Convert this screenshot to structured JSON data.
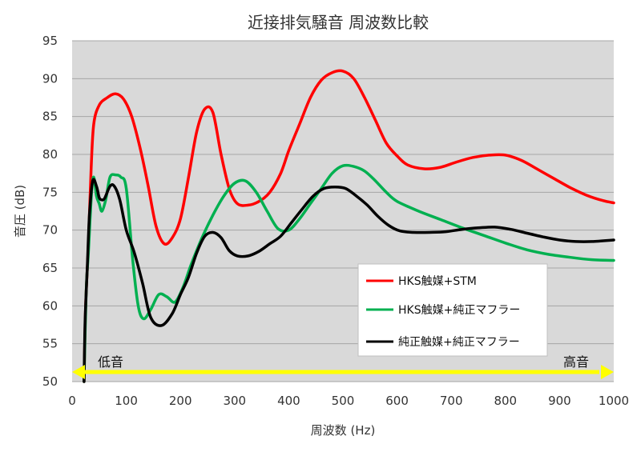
{
  "chart_data": {
    "type": "line",
    "title": "近接排気騒音 周波数比較",
    "xlabel": "周波数 (Hz)",
    "ylabel": "音圧 (dB)",
    "xlim": [
      0,
      1000
    ],
    "ylim": [
      50,
      95
    ],
    "xticks": [
      "0",
      "100",
      "200",
      "300",
      "400",
      "500",
      "600",
      "700",
      "800",
      "900",
      "1000"
    ],
    "yticks": [
      "50",
      "55",
      "60",
      "65",
      "70",
      "75",
      "80",
      "85",
      "90",
      "95"
    ],
    "grid": "horizontal",
    "background_color": "#d9d9d9",
    "legend_position": "bottom-right-inside",
    "annotations": [
      {
        "text": "低音",
        "position": "left"
      },
      {
        "text": "高音",
        "position": "right"
      }
    ],
    "arrow_color": "#ffff00",
    "series": [
      {
        "name": "HKS触媒+STM",
        "color": "#ff0000",
        "points": [
          [
            22,
            50
          ],
          [
            25,
            60
          ],
          [
            30,
            68
          ],
          [
            35,
            78
          ],
          [
            40,
            84
          ],
          [
            50,
            86.5
          ],
          [
            65,
            87.5
          ],
          [
            80,
            88
          ],
          [
            95,
            87.3
          ],
          [
            110,
            85
          ],
          [
            125,
            81
          ],
          [
            140,
            76
          ],
          [
            155,
            70.5
          ],
          [
            170,
            68.2
          ],
          [
            185,
            69
          ],
          [
            200,
            71.5
          ],
          [
            215,
            77
          ],
          [
            230,
            83
          ],
          [
            245,
            86
          ],
          [
            260,
            85.5
          ],
          [
            275,
            80
          ],
          [
            290,
            75.5
          ],
          [
            305,
            73.5
          ],
          [
            325,
            73.3
          ],
          [
            345,
            73.8
          ],
          [
            365,
            75
          ],
          [
            385,
            77.5
          ],
          [
            400,
            80.5
          ],
          [
            420,
            84
          ],
          [
            440,
            87.5
          ],
          [
            460,
            89.8
          ],
          [
            480,
            90.8
          ],
          [
            500,
            91
          ],
          [
            520,
            90
          ],
          [
            540,
            87.5
          ],
          [
            560,
            84.5
          ],
          [
            580,
            81.5
          ],
          [
            600,
            79.8
          ],
          [
            620,
            78.6
          ],
          [
            650,
            78.1
          ],
          [
            680,
            78.3
          ],
          [
            710,
            79
          ],
          [
            740,
            79.6
          ],
          [
            770,
            79.9
          ],
          [
            800,
            79.9
          ],
          [
            830,
            79.2
          ],
          [
            860,
            78
          ],
          [
            890,
            76.8
          ],
          [
            920,
            75.6
          ],
          [
            950,
            74.6
          ],
          [
            980,
            73.9
          ],
          [
            1000,
            73.6
          ]
        ]
      },
      {
        "name": "HKS触媒+純正マフラー",
        "color": "#00b050",
        "points": [
          [
            22,
            50
          ],
          [
            26,
            62
          ],
          [
            30,
            67
          ],
          [
            36,
            75
          ],
          [
            40,
            77
          ],
          [
            45,
            74.5
          ],
          [
            50,
            73.5
          ],
          [
            55,
            72.5
          ],
          [
            62,
            74
          ],
          [
            70,
            77
          ],
          [
            80,
            77.3
          ],
          [
            90,
            77
          ],
          [
            100,
            75.5
          ],
          [
            112,
            66
          ],
          [
            122,
            60
          ],
          [
            132,
            58.3
          ],
          [
            145,
            59.5
          ],
          [
            160,
            61.5
          ],
          [
            175,
            61.2
          ],
          [
            190,
            60.5
          ],
          [
            205,
            62.5
          ],
          [
            220,
            65.5
          ],
          [
            240,
            69
          ],
          [
            260,
            72
          ],
          [
            280,
            74.5
          ],
          [
            300,
            76.2
          ],
          [
            320,
            76.5
          ],
          [
            340,
            75
          ],
          [
            360,
            72.5
          ],
          [
            380,
            70.2
          ],
          [
            400,
            70
          ],
          [
            420,
            71.5
          ],
          [
            440,
            73.5
          ],
          [
            460,
            75.5
          ],
          [
            480,
            77.5
          ],
          [
            500,
            78.5
          ],
          [
            520,
            78.4
          ],
          [
            540,
            77.8
          ],
          [
            560,
            76.5
          ],
          [
            580,
            75
          ],
          [
            600,
            73.8
          ],
          [
            640,
            72.5
          ],
          [
            680,
            71.4
          ],
          [
            720,
            70.3
          ],
          [
            760,
            69.3
          ],
          [
            800,
            68.3
          ],
          [
            840,
            67.4
          ],
          [
            880,
            66.8
          ],
          [
            920,
            66.4
          ],
          [
            960,
            66.1
          ],
          [
            1000,
            66
          ]
        ]
      },
      {
        "name": "純正触媒+純正マフラー",
        "color": "#000000",
        "points": [
          [
            22,
            50
          ],
          [
            24,
            58
          ],
          [
            28,
            65
          ],
          [
            32,
            72
          ],
          [
            38,
            76.5
          ],
          [
            45,
            75.8
          ],
          [
            50,
            74.3
          ],
          [
            55,
            74
          ],
          [
            60,
            74.2
          ],
          [
            70,
            75.8
          ],
          [
            78,
            75.8
          ],
          [
            88,
            74
          ],
          [
            100,
            70
          ],
          [
            115,
            67
          ],
          [
            130,
            63
          ],
          [
            145,
            58.5
          ],
          [
            165,
            57.4
          ],
          [
            185,
            59
          ],
          [
            200,
            61.5
          ],
          [
            215,
            63.8
          ],
          [
            230,
            67
          ],
          [
            245,
            69.2
          ],
          [
            260,
            69.7
          ],
          [
            275,
            69
          ],
          [
            290,
            67.3
          ],
          [
            305,
            66.6
          ],
          [
            325,
            66.6
          ],
          [
            345,
            67.2
          ],
          [
            365,
            68.2
          ],
          [
            385,
            69.2
          ],
          [
            405,
            71
          ],
          [
            425,
            72.8
          ],
          [
            445,
            74.5
          ],
          [
            465,
            75.5
          ],
          [
            485,
            75.7
          ],
          [
            505,
            75.5
          ],
          [
            525,
            74.5
          ],
          [
            545,
            73.3
          ],
          [
            565,
            71.8
          ],
          [
            585,
            70.6
          ],
          [
            605,
            69.9
          ],
          [
            630,
            69.7
          ],
          [
            660,
            69.7
          ],
          [
            690,
            69.8
          ],
          [
            720,
            70.1
          ],
          [
            750,
            70.3
          ],
          [
            780,
            70.4
          ],
          [
            810,
            70.1
          ],
          [
            840,
            69.6
          ],
          [
            870,
            69.1
          ],
          [
            900,
            68.7
          ],
          [
            930,
            68.5
          ],
          [
            960,
            68.5
          ],
          [
            1000,
            68.7
          ]
        ]
      }
    ]
  }
}
